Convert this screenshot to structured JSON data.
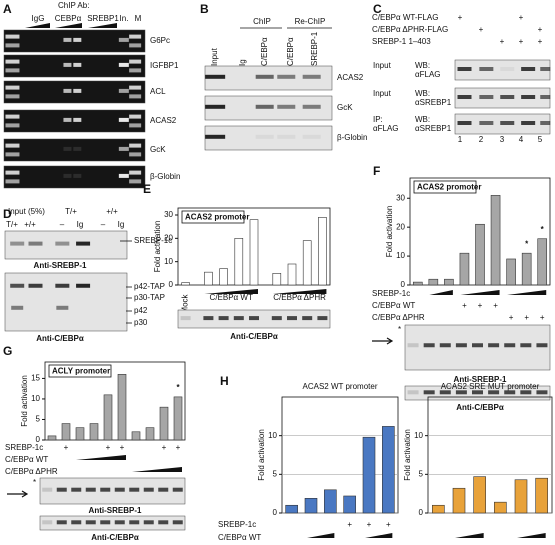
{
  "panels": {
    "A": {
      "label": "A",
      "header": "ChIP Ab:",
      "columns": [
        "IgG",
        "CEBPα",
        "SREBP1",
        "In.",
        "M"
      ],
      "rows": [
        "G6Pc",
        "IGFBP1",
        "ACL",
        "ACAS2",
        "GcK",
        "β-Globin"
      ]
    },
    "B": {
      "label": "B",
      "groups": [
        "ChIP",
        "Re-ChIP"
      ],
      "columns": [
        "Input",
        "Ig",
        "C/EBPα",
        "C/EBPα",
        "SREBP-1"
      ],
      "rows": [
        "ACAS2",
        "GcK",
        "β-Globin"
      ]
    },
    "C": {
      "label": "C",
      "conditions": [
        {
          "name": "C/EBPα WT-FLAG",
          "signs": [
            "+",
            null,
            null,
            "+",
            null
          ]
        },
        {
          "name": "C/EBPα ΔPHR-FLAG",
          "signs": [
            null,
            "+",
            null,
            null,
            "+"
          ]
        },
        {
          "name": "SREBP-1 1–403",
          "signs": [
            null,
            null,
            "+",
            "+",
            "+"
          ]
        }
      ],
      "blots": [
        {
          "left": [
            "Input"
          ],
          "right": [
            "WB:",
            "αFLAG"
          ]
        },
        {
          "left": [
            "Input"
          ],
          "right": [
            "WB:",
            "αSREBP1"
          ]
        },
        {
          "left": [
            "IP:",
            "αFLAG"
          ],
          "right": [
            "WB:",
            "αSREBP1"
          ]
        }
      ],
      "lanes": [
        "1",
        "2",
        "3",
        "4",
        "5"
      ]
    },
    "D": {
      "label": "D",
      "header": [
        "Input (5%)",
        "T/+",
        "+/+"
      ],
      "lanes": [
        "T/+",
        "+/+",
        "–",
        "Ig",
        "–",
        "Ig"
      ],
      "top_bands": [
        "SREBP-1c"
      ],
      "top_antibody": "Anti-SREBP-1",
      "bottom_bands": [
        "p42-TAP",
        "p30-TAP",
        "p42",
        "p30"
      ],
      "bottom_antibody": "Anti-C/EBPα"
    }
  },
  "chart_data": [
    {
      "type": "bar",
      "label": "E",
      "title": "ACAS2 promoter",
      "y_label": "Fold activation",
      "values": [
        1,
        5.5,
        7,
        20,
        28,
        5,
        9,
        19,
        29
      ],
      "color": "#ffffff",
      "ylim": [
        0,
        33
      ],
      "yticks": [
        0,
        10,
        20,
        30
      ],
      "groups": [
        "Mock",
        "C/EBPα WT",
        "C/EBPα ΔPHR"
      ],
      "blots": [
        "Anti-C/EBPα"
      ]
    },
    {
      "type": "bar",
      "label": "F",
      "title": "ACAS2 promoter",
      "y_label": "Fold activation",
      "values": [
        1,
        2,
        2,
        11,
        21,
        31,
        9,
        11,
        16
      ],
      "color": "#a6a6a6",
      "ylim": [
        0,
        37
      ],
      "yticks": [
        0,
        10,
        20,
        30
      ],
      "annotations": [
        "*",
        "*"
      ],
      "conditions": [
        {
          "name": "SREBP-1c"
        },
        {
          "name": "C/EBPα WT",
          "signs": [
            null,
            null,
            null,
            "+",
            "+",
            "+",
            null,
            null,
            null
          ]
        },
        {
          "name": "C/EBPα ΔPHR",
          "signs": [
            null,
            null,
            null,
            null,
            null,
            null,
            "+",
            "+",
            "+"
          ]
        }
      ],
      "blots": [
        "Anti-SREBP-1",
        "Anti-C/EBPα"
      ],
      "blot_star": "*"
    },
    {
      "type": "bar",
      "label": "G",
      "title": "ACLY promoter",
      "y_label": "Fold activation",
      "values": [
        1,
        4,
        3,
        4,
        11,
        16,
        2,
        3,
        8,
        10.5
      ],
      "color": "#a6a6a6",
      "ylim": [
        0,
        19
      ],
      "yticks": [
        0,
        5,
        10,
        15
      ],
      "annotations": [
        "*"
      ],
      "conditions": [
        {
          "name": "SREBP-1c",
          "signs": [
            null,
            "+",
            null,
            null,
            "+",
            "+",
            null,
            null,
            "+",
            "+"
          ]
        },
        {
          "name": "C/EBPα WT"
        },
        {
          "name": "C/EBPα ΔPHR"
        }
      ],
      "blots": [
        "Anti-SREBP-1",
        "Anti-C/EBPα"
      ],
      "blot_star": "*"
    },
    {
      "type": "bar",
      "label": "H",
      "title": "ACAS2 WT promoter",
      "y_label": "Fold activation",
      "values": [
        1,
        1.9,
        3,
        2.2,
        9.8,
        11.2
      ],
      "color": "#4a78c2",
      "ylim": [
        0,
        15
      ],
      "yticks": [
        0,
        5,
        10
      ],
      "grid": true,
      "conditions": [
        {
          "name": "SREBP-1c",
          "signs": [
            null,
            null,
            null,
            "+",
            "+",
            "+"
          ]
        },
        {
          "name": "C/EBPα WT"
        }
      ]
    },
    {
      "type": "bar",
      "title": "ACAS2 SRE MUT promoter",
      "y_label": "Fold activation",
      "values": [
        1,
        3.2,
        4.7,
        1.4,
        4.3,
        4.5
      ],
      "color": "#e8a23a",
      "ylim": [
        0,
        15
      ],
      "yticks": [
        0,
        5,
        10
      ],
      "grid": true
    }
  ]
}
